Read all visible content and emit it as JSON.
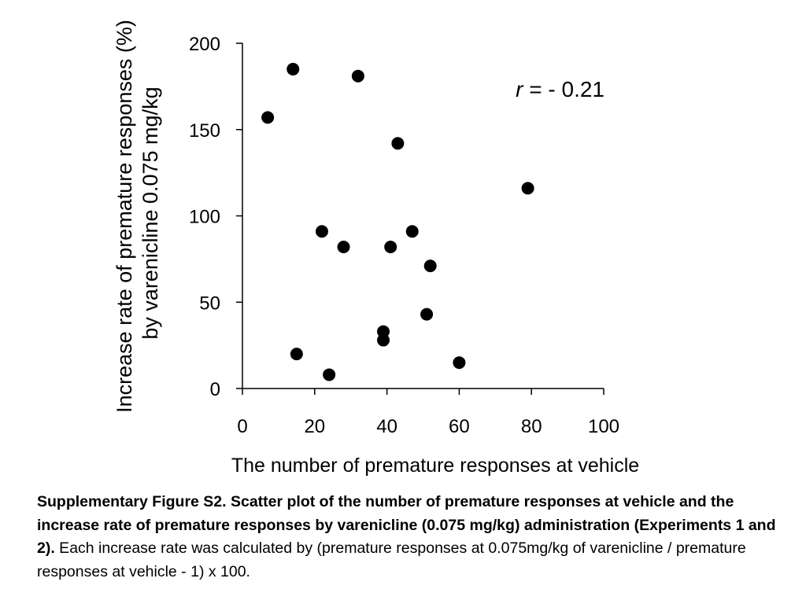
{
  "chart_data": {
    "type": "scatter",
    "xlabel": "The number of premature responses at vehicle",
    "ylabel_line1": "Increase rate of premature responses (%)",
    "ylabel_line2": "by varenicline 0.075 mg/kg",
    "xlim": [
      0,
      100
    ],
    "ylim": [
      0,
      200
    ],
    "x_ticks": [
      0,
      20,
      40,
      60,
      80,
      100
    ],
    "y_ticks": [
      0,
      50,
      100,
      150,
      200
    ],
    "grid": false,
    "annotation": {
      "italic": "r",
      "text": " = - 0.21"
    },
    "points": [
      {
        "x": 7,
        "y": 157
      },
      {
        "x": 14,
        "y": 185
      },
      {
        "x": 32,
        "y": 181
      },
      {
        "x": 43,
        "y": 142
      },
      {
        "x": 79,
        "y": 116
      },
      {
        "x": 22,
        "y": 91
      },
      {
        "x": 47,
        "y": 91
      },
      {
        "x": 28,
        "y": 82
      },
      {
        "x": 41,
        "y": 82
      },
      {
        "x": 52,
        "y": 71
      },
      {
        "x": 51,
        "y": 43
      },
      {
        "x": 39,
        "y": 33
      },
      {
        "x": 39,
        "y": 28
      },
      {
        "x": 15,
        "y": 20
      },
      {
        "x": 60,
        "y": 15
      },
      {
        "x": 24,
        "y": 8
      }
    ]
  },
  "caption": {
    "bold": "Supplementary Figure S2. Scatter plot of the number of premature responses at vehicle and the increase rate of premature responses by varenicline (0.075 mg/kg) administration (Experiments 1 and 2).",
    "normal": " Each increase rate was calculated by (premature responses at 0.075mg/kg of varenicline / premature responses at vehicle - 1) x 100."
  }
}
